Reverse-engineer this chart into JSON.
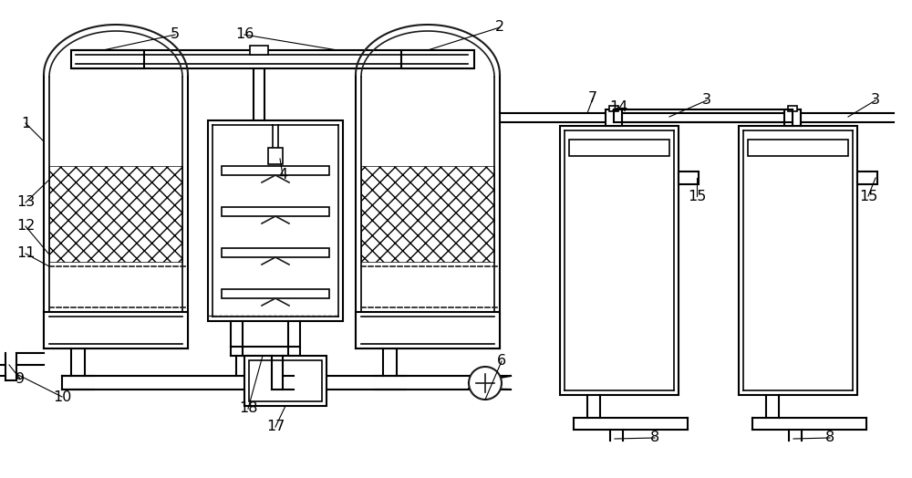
{
  "bg_color": "#ffffff",
  "line_color": "#1a1a1a",
  "lw": 1.5,
  "lw2": 1.2,
  "lw_thin": 0.8
}
